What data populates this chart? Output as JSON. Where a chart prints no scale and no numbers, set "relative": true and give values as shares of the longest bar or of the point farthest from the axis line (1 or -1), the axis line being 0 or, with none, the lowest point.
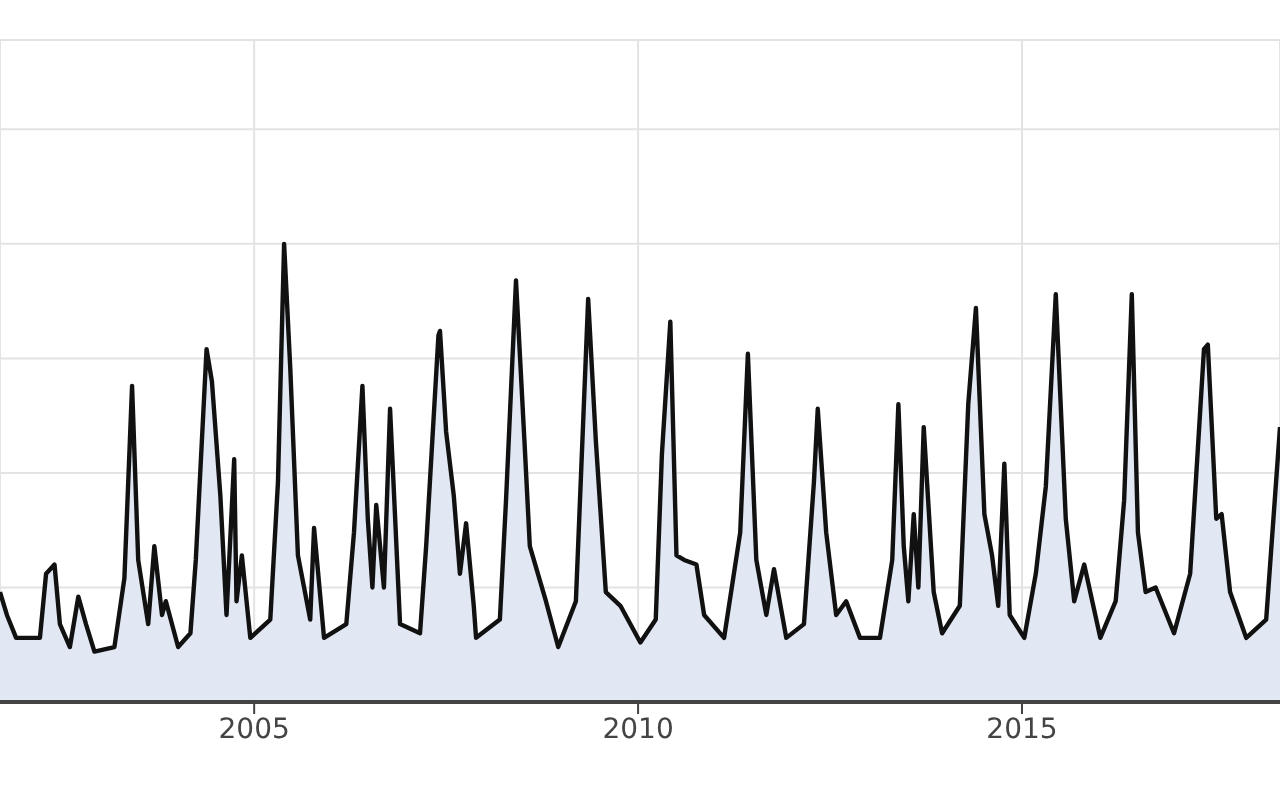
{
  "chart_data": {
    "type": "area",
    "relative": true,
    "grid": true,
    "xlim": [
      2001.69,
      2018.36
    ],
    "xticks": [
      2005,
      2010,
      2015
    ],
    "series": [
      {
        "color": "#111111",
        "x": [
          2001.69,
          2001.78,
          2001.9,
          2002.21,
          2002.29,
          2002.4,
          2002.47,
          2002.6,
          2002.71,
          2002.81,
          2002.92,
          2003.18,
          2003.31,
          2003.41,
          2003.49,
          2003.62,
          2003.7,
          2003.8,
          2003.85,
          2004.01,
          2004.17,
          2004.24,
          2004.38,
          2004.45,
          2004.56,
          2004.64,
          2004.74,
          2004.77,
          2004.84,
          2004.95,
          2005.21,
          2005.31,
          2005.39,
          2005.47,
          2005.57,
          2005.73,
          2005.78,
          2005.91,
          2006.2,
          2006.3,
          2006.41,
          2006.48,
          2006.54,
          2006.59,
          2006.69,
          2006.77,
          2006.9,
          2007.16,
          2007.24,
          2007.4,
          2007.42,
          2007.5,
          2007.6,
          2007.68,
          2007.76,
          2007.86,
          2007.89,
          2008.2,
          2008.28,
          2008.41,
          2008.52,
          2008.59,
          2008.8,
          2008.96,
          2009.19,
          2009.35,
          2009.45,
          2009.58,
          2009.77,
          2010.03,
          2010.23,
          2010.31,
          2010.42,
          2010.5,
          2010.6,
          2010.76,
          2010.86,
          2011.12,
          2011.33,
          2011.43,
          2011.54,
          2011.67,
          2011.77,
          2011.93,
          2012.16,
          2012.29,
          2012.34,
          2012.45,
          2012.58,
          2012.71,
          2012.89,
          2013.15,
          2013.31,
          2013.39,
          2013.46,
          2013.52,
          2013.59,
          2013.65,
          2013.72,
          2013.85,
          2013.96,
          2014.19,
          2014.3,
          2014.4,
          2014.51,
          2014.61,
          2014.69,
          2014.77,
          2014.84,
          2015.03,
          2015.18,
          2015.31,
          2015.44,
          2015.57,
          2015.68,
          2015.81,
          2016.02,
          2016.22,
          2016.33,
          2016.43,
          2016.51,
          2016.61,
          2016.74,
          2016.98,
          2017.19,
          2017.37,
          2017.42,
          2017.53,
          2017.6,
          2017.71,
          2017.92,
          2018.18,
          2018.36
        ],
        "values": [
          0.24,
          0.19,
          0.14,
          0.14,
          0.28,
          0.3,
          0.17,
          0.12,
          0.23,
          0.17,
          0.11,
          0.12,
          0.27,
          0.69,
          0.31,
          0.17,
          0.34,
          0.19,
          0.22,
          0.12,
          0.15,
          0.31,
          0.77,
          0.7,
          0.45,
          0.19,
          0.53,
          0.22,
          0.32,
          0.14,
          0.18,
          0.48,
          1.0,
          0.73,
          0.32,
          0.18,
          0.38,
          0.14,
          0.17,
          0.37,
          0.69,
          0.4,
          0.25,
          0.43,
          0.25,
          0.64,
          0.17,
          0.15,
          0.34,
          0.8,
          0.81,
          0.59,
          0.45,
          0.28,
          0.39,
          0.21,
          0.14,
          0.18,
          0.44,
          0.92,
          0.57,
          0.34,
          0.22,
          0.12,
          0.22,
          0.88,
          0.57,
          0.24,
          0.21,
          0.13,
          0.18,
          0.54,
          0.83,
          0.32,
          0.31,
          0.3,
          0.19,
          0.14,
          0.37,
          0.76,
          0.31,
          0.19,
          0.29,
          0.14,
          0.17,
          0.48,
          0.64,
          0.37,
          0.19,
          0.22,
          0.14,
          0.14,
          0.31,
          0.65,
          0.34,
          0.22,
          0.41,
          0.25,
          0.6,
          0.24,
          0.15,
          0.21,
          0.65,
          0.86,
          0.41,
          0.32,
          0.21,
          0.52,
          0.19,
          0.14,
          0.28,
          0.47,
          0.89,
          0.4,
          0.22,
          0.3,
          0.14,
          0.22,
          0.44,
          0.89,
          0.37,
          0.24,
          0.25,
          0.15,
          0.28,
          0.77,
          0.78,
          0.4,
          0.41,
          0.24,
          0.14,
          0.18,
          0.6
        ]
      }
    ]
  }
}
